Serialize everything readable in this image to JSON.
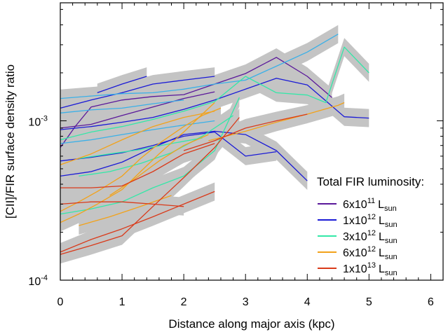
{
  "chart_data": {
    "type": "line",
    "title": "",
    "xlabel": "Distance along major axis (kpc)",
    "ylabel": "[CII]/FIR surface density ratio",
    "xlim": [
      0,
      6.2
    ],
    "ylim": [
      0.0001,
      0.0055
    ],
    "yscale": "log",
    "grid": false,
    "x_ticks": [
      {
        "value": 0,
        "label": "0"
      },
      {
        "value": 1,
        "label": "1"
      },
      {
        "value": 2,
        "label": "2"
      },
      {
        "value": 3,
        "label": "3"
      },
      {
        "value": 4,
        "label": "4"
      },
      {
        "value": 5,
        "label": "5"
      },
      {
        "value": 6,
        "label": "6"
      }
    ],
    "y_ticks": [
      {
        "value": 0.0001,
        "base": "10",
        "exp": "-4"
      },
      {
        "value": 0.001,
        "base": "10",
        "exp": "-3"
      }
    ],
    "legend": {
      "title": "Total FIR luminosity:",
      "placement": "lower-right",
      "entries": [
        {
          "mantissa": "6x10",
          "exp": "11",
          "unit": "L",
          "unit_sub": "sun",
          "color": "#5a189a"
        },
        {
          "mantissa": "1x10",
          "exp": "12",
          "unit": "L",
          "unit_sub": "sun",
          "color": "#1a1ad6"
        },
        {
          "mantissa": "3x10",
          "exp": "12",
          "unit": "L",
          "unit_sub": "sun",
          "color": "#33e8a8"
        },
        {
          "mantissa": "6x10",
          "exp": "12",
          "unit": "L",
          "unit_sub": "sun",
          "color": "#f2a21a"
        },
        {
          "mantissa": "1x10",
          "exp": "13",
          "unit": "L",
          "unit_sub": "sun",
          "color": "#d93a1a"
        }
      ]
    },
    "band_color": "#c4c4c4",
    "series": [
      {
        "color": "#5a189a",
        "x": [
          0,
          0.25,
          0.5,
          1.0,
          1.5,
          2.0,
          2.5,
          3.0,
          3.5,
          4.0,
          4.4
        ],
        "y": [
          0.00068,
          0.00093,
          0.00122,
          0.00135,
          0.00142,
          0.00146,
          0.0017,
          0.00198,
          0.0025,
          0.0019,
          0.0014
        ]
      },
      {
        "color": "#5a189a",
        "x": [
          0,
          0.5,
          1.0,
          1.5,
          2.0,
          2.5
        ],
        "y": [
          0.0009,
          0.00095,
          0.00108,
          0.00122,
          0.00138,
          0.00152
        ]
      },
      {
        "color": "#1a1ad6",
        "x": [
          0,
          0.5,
          1.0,
          1.5,
          2.0,
          2.5,
          3.0,
          3.5,
          4.0,
          4.6,
          5.0
        ],
        "y": [
          0.00088,
          0.00092,
          0.00098,
          0.00105,
          0.00118,
          0.00135,
          0.00158,
          0.00185,
          0.00168,
          0.00106,
          0.00104
        ]
      },
      {
        "color": "#1a1ad6",
        "x": [
          0,
          0.5,
          1.0,
          1.5,
          2.0,
          2.5,
          3.0,
          3.5,
          4.0
        ],
        "y": [
          0.00045,
          0.00048,
          0.00055,
          0.00068,
          0.00082,
          0.00086,
          0.00082,
          0.00065,
          0.00042
        ]
      },
      {
        "color": "#1a1ad6",
        "x": [
          0,
          0.5,
          1.0,
          1.5,
          2.0,
          2.5,
          3.0,
          3.5
        ],
        "y": [
          0.00056,
          0.00059,
          0.00063,
          0.0007,
          0.0008,
          0.00085,
          0.0006,
          0.00064
        ]
      },
      {
        "color": "#1a1ad6",
        "x": [
          0,
          0.5,
          1.0,
          1.5,
          2.0,
          2.5
        ],
        "y": [
          0.0012,
          0.00135,
          0.0015,
          0.0017,
          0.0018,
          0.0019
        ]
      },
      {
        "color": "#1a1ad6",
        "x": [
          0.6,
          1.0,
          1.4
        ],
        "y": [
          0.0015,
          0.0017,
          0.0019
        ]
      },
      {
        "color": "#3ab0e8",
        "x": [
          0,
          0.5,
          1.0,
          1.5,
          2.0,
          2.5,
          3.0,
          3.5,
          4.0,
          4.5
        ],
        "y": [
          0.00138,
          0.00143,
          0.00148,
          0.0015,
          0.00158,
          0.0017,
          0.0018,
          0.0022,
          0.0027,
          0.0035
        ]
      },
      {
        "color": "#3ab0e8",
        "x": [
          0,
          0.5,
          1.0,
          1.5,
          2.0
        ],
        "y": [
          0.00112,
          0.00117,
          0.0012,
          0.00128,
          0.00135
        ]
      },
      {
        "color": "#3ab0e8",
        "x": [
          0,
          0.5,
          1.0,
          1.5,
          2.0,
          2.5
        ],
        "y": [
          0.00072,
          0.00076,
          0.00082,
          0.00088,
          0.00094,
          0.001
        ]
      },
      {
        "color": "#33e8a8",
        "x": [
          0,
          0.5,
          1.0,
          1.5,
          2.0,
          2.5,
          3.0,
          3.5,
          4.0,
          4.3,
          4.6,
          5.0
        ],
        "y": [
          0.00076,
          0.00085,
          0.00092,
          0.00102,
          0.00115,
          0.00132,
          0.0019,
          0.0015,
          0.00145,
          0.0013,
          0.0029,
          0.002
        ]
      },
      {
        "color": "#33e8a8",
        "x": [
          0,
          0.5,
          1.0,
          1.5,
          2.0,
          2.5,
          2.9
        ],
        "y": [
          0.00026,
          0.00028,
          0.00031,
          0.00038,
          0.00045,
          0.00065,
          0.0014
        ]
      },
      {
        "color": "#33e8a8",
        "x": [
          0.3,
          0.8,
          1.3,
          1.8,
          2.3,
          2.8
        ],
        "y": [
          0.00045,
          0.00048,
          0.00054,
          0.00063,
          0.0008,
          0.00108
        ]
      },
      {
        "color": "#33e8a8",
        "x": [
          0.3,
          0.8,
          1.3,
          1.8,
          2.3
        ],
        "y": [
          0.00058,
          0.00062,
          0.00066,
          0.00072,
          0.00078
        ]
      },
      {
        "color": "#f2a21a",
        "x": [
          0,
          0.3,
          0.6,
          1.0,
          1.3,
          1.6,
          2.0,
          2.3,
          2.5
        ],
        "y": [
          0.00023,
          0.00026,
          0.0003,
          0.00037,
          0.00048,
          0.00062,
          0.00085,
          0.0011,
          0.0013
        ]
      },
      {
        "color": "#f2a21a",
        "x": [
          0,
          0.3,
          0.6,
          1.0,
          1.3,
          1.6,
          2.0,
          2.3,
          2.6
        ],
        "y": [
          0.00027,
          0.00031,
          0.00036,
          0.00045,
          0.00058,
          0.00072,
          0.00092,
          0.00108,
          0.0012
        ]
      },
      {
        "color": "#f2a21a",
        "x": [
          0,
          0.5,
          1.0,
          1.5,
          2.0,
          2.5
        ],
        "y": [
          0.00053,
          0.00062,
          0.00076,
          0.00092,
          0.00105,
          0.00115
        ]
      },
      {
        "color": "#f2a21a",
        "x": [
          2.4,
          3.0,
          3.5,
          4.0,
          4.5,
          4.6
        ],
        "y": [
          0.00075,
          0.00086,
          0.00098,
          0.0011,
          0.00125,
          0.0013
        ]
      },
      {
        "color": "#f2a21a",
        "x": [
          0.8,
          1.2,
          1.6,
          2.0,
          2.4
        ],
        "y": [
          0.00034,
          0.00043,
          0.00056,
          0.0007,
          0.00082
        ]
      },
      {
        "color": "#f2a21a",
        "x": [
          0.3,
          0.8,
          1.3,
          1.8
        ],
        "y": [
          0.00022,
          0.00025,
          0.00029,
          0.00034
        ]
      },
      {
        "color": "#d93a1a",
        "x": [
          0,
          0.5,
          1.0,
          1.5,
          2.0,
          2.5,
          2.9
        ],
        "y": [
          0.000145,
          0.000165,
          0.00019,
          0.00029,
          0.00044,
          0.00068,
          0.00105
        ]
      },
      {
        "color": "#d93a1a",
        "x": [
          0,
          0.5,
          1.0,
          1.5,
          2.0,
          2.5
        ],
        "y": [
          0.00038,
          0.00038,
          0.00039,
          0.00048,
          0.00062,
          0.00072
        ]
      },
      {
        "color": "#d93a1a",
        "x": [
          0,
          0.5,
          1.0,
          1.5,
          2.0
        ],
        "y": [
          0.0003,
          0.00031,
          0.00031,
          0.0003,
          0.00029
        ]
      },
      {
        "color": "#d93a1a",
        "x": [
          2.0,
          2.5,
          3.0,
          3.5,
          4.0
        ],
        "y": [
          0.00065,
          0.00075,
          0.0009,
          0.001,
          0.0011
        ]
      },
      {
        "color": "#d93a1a",
        "x": [
          0,
          0.5,
          1.0,
          1.5,
          2.0,
          2.5
        ],
        "y": [
          0.00015,
          0.00018,
          0.00021,
          0.00025,
          0.0003,
          0.00036
        ]
      }
    ]
  }
}
